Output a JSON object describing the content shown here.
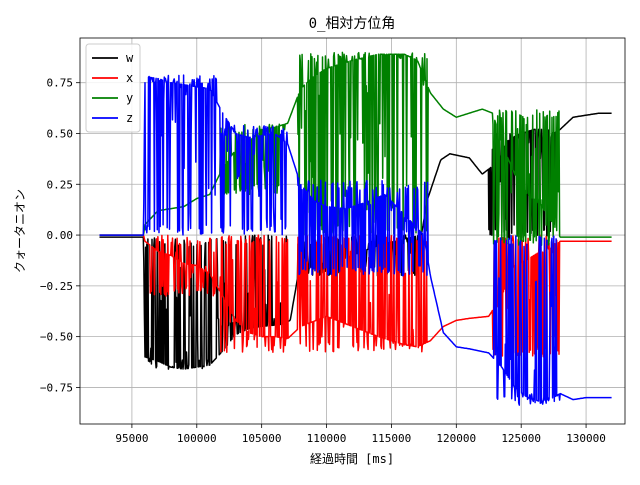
{
  "chart_data": {
    "type": "line",
    "title": "0_相対方位角",
    "xlabel": "経過時間 [ms]",
    "ylabel": "クォータニオン",
    "xlim": [
      91000,
      133000
    ],
    "ylim": [
      -0.93,
      0.97
    ],
    "xticks": [
      95000,
      100000,
      105000,
      110000,
      115000,
      120000,
      125000,
      130000
    ],
    "xtick_labels": [
      "95000",
      "100000",
      "105000",
      "110000",
      "115000",
      "120000",
      "125000",
      "130000"
    ],
    "yticks": [
      -0.75,
      -0.5,
      -0.25,
      0.0,
      0.25,
      0.5,
      0.75
    ],
    "ytick_labels": [
      "−0.75",
      "−0.50",
      "−0.25",
      "0.00",
      "0.25",
      "0.50",
      "0.75"
    ],
    "grid": true,
    "legend_position": "top-left",
    "series": [
      {
        "name": "w",
        "color": "#000000",
        "points": [
          [
            92500,
            -0.01
          ],
          [
            95900,
            -0.01
          ],
          [
            96000,
            -0.6
          ],
          [
            97000,
            -0.62
          ],
          [
            98000,
            -0.65
          ],
          [
            99000,
            -0.66
          ],
          [
            100000,
            -0.65
          ],
          [
            101000,
            -0.64
          ],
          [
            102000,
            -0.57
          ],
          [
            103000,
            -0.49
          ],
          [
            104000,
            -0.46
          ],
          [
            105000,
            -0.45
          ],
          [
            106500,
            -0.44
          ],
          [
            107200,
            -0.42
          ],
          [
            107800,
            -0.2
          ],
          [
            108500,
            -0.16
          ],
          [
            110000,
            -0.15
          ],
          [
            112000,
            -0.1
          ],
          [
            114000,
            -0.05
          ],
          [
            116000,
            -0.02
          ],
          [
            117300,
            0.0
          ],
          [
            117800,
            0.18
          ],
          [
            118800,
            0.37
          ],
          [
            119500,
            0.4
          ],
          [
            121000,
            0.38
          ],
          [
            122000,
            0.3
          ],
          [
            123000,
            0.35
          ],
          [
            124000,
            0.47
          ],
          [
            125000,
            0.5
          ],
          [
            126000,
            0.52
          ],
          [
            127000,
            0.52
          ],
          [
            127500,
            0.5
          ],
          [
            128000,
            0.52
          ],
          [
            129000,
            0.58
          ],
          [
            130000,
            0.59
          ],
          [
            131000,
            0.6
          ],
          [
            132000,
            0.6
          ]
        ],
        "noise": [
          [
            96000,
            101500,
            -0.66,
            -0.01
          ],
          [
            101500,
            107000,
            -0.46,
            0.0
          ],
          [
            107800,
            117000,
            -0.2,
            0.0
          ],
          [
            122500,
            127800,
            -0.02,
            0.5
          ]
        ]
      },
      {
        "name": "x",
        "color": "#ff0000",
        "points": [
          [
            92500,
            0.0
          ],
          [
            95900,
            0.0
          ],
          [
            96000,
            -0.03
          ],
          [
            97000,
            -0.08
          ],
          [
            98000,
            -0.1
          ],
          [
            99000,
            -0.14
          ],
          [
            100000,
            -0.15
          ],
          [
            101000,
            -0.19
          ],
          [
            102000,
            -0.3
          ],
          [
            103000,
            -0.42
          ],
          [
            104000,
            -0.48
          ],
          [
            105000,
            -0.5
          ],
          [
            106000,
            -0.5
          ],
          [
            107000,
            -0.51
          ],
          [
            108000,
            -0.45
          ],
          [
            110000,
            -0.4
          ],
          [
            112000,
            -0.45
          ],
          [
            114000,
            -0.5
          ],
          [
            115000,
            -0.52
          ],
          [
            116000,
            -0.54
          ],
          [
            117000,
            -0.55
          ],
          [
            118000,
            -0.52
          ],
          [
            119000,
            -0.45
          ],
          [
            120000,
            -0.42
          ],
          [
            121000,
            -0.41
          ],
          [
            122500,
            -0.4
          ],
          [
            123500,
            -0.3
          ],
          [
            124500,
            -0.15
          ],
          [
            125500,
            -0.12
          ],
          [
            126500,
            -0.08
          ],
          [
            127500,
            -0.06
          ],
          [
            128000,
            -0.03
          ],
          [
            132000,
            -0.03
          ]
        ],
        "noise": [
          [
            96200,
            101500,
            -0.3,
            0.0
          ],
          [
            101800,
            107000,
            -0.58,
            0.0
          ],
          [
            107800,
            117700,
            -0.58,
            0.0
          ],
          [
            122800,
            128000,
            -0.6,
            0.0
          ]
        ]
      },
      {
        "name": "y",
        "color": "#008000",
        "points": [
          [
            92500,
            0.0
          ],
          [
            95900,
            0.0
          ],
          [
            96000,
            0.05
          ],
          [
            97000,
            0.12
          ],
          [
            98000,
            0.13
          ],
          [
            99000,
            0.14
          ],
          [
            100000,
            0.18
          ],
          [
            101000,
            0.2
          ],
          [
            102000,
            0.33
          ],
          [
            103000,
            0.42
          ],
          [
            104000,
            0.46
          ],
          [
            105000,
            0.52
          ],
          [
            106000,
            0.53
          ],
          [
            107000,
            0.55
          ],
          [
            108000,
            0.72
          ],
          [
            109000,
            0.78
          ],
          [
            110000,
            0.82
          ],
          [
            112000,
            0.86
          ],
          [
            114000,
            0.89
          ],
          [
            116000,
            0.89
          ],
          [
            117000,
            0.86
          ],
          [
            118000,
            0.7
          ],
          [
            119000,
            0.62
          ],
          [
            120000,
            0.58
          ],
          [
            121000,
            0.6
          ],
          [
            122000,
            0.62
          ],
          [
            122800,
            0.6
          ],
          [
            123500,
            0.45
          ],
          [
            124500,
            0.3
          ],
          [
            125500,
            0.2
          ],
          [
            126500,
            0.15
          ],
          [
            127500,
            0.05
          ],
          [
            128000,
            -0.01
          ],
          [
            132000,
            -0.01
          ]
        ],
        "noise": [
          [
            101800,
            106800,
            0.2,
            0.55
          ],
          [
            107800,
            117800,
            0.0,
            0.9
          ],
          [
            122800,
            128000,
            -0.05,
            0.62
          ]
        ]
      },
      {
        "name": "z",
        "color": "#0000ff",
        "points": [
          [
            92500,
            0.0
          ],
          [
            95900,
            0.0
          ],
          [
            96000,
            0.78
          ],
          [
            97000,
            0.77
          ],
          [
            98000,
            0.75
          ],
          [
            99000,
            0.74
          ],
          [
            100000,
            0.73
          ],
          [
            101000,
            0.72
          ],
          [
            102000,
            0.6
          ],
          [
            103000,
            0.5
          ],
          [
            104000,
            0.48
          ],
          [
            105000,
            0.49
          ],
          [
            106000,
            0.5
          ],
          [
            107000,
            0.45
          ],
          [
            108000,
            0.25
          ],
          [
            109000,
            0.17
          ],
          [
            110000,
            0.14
          ],
          [
            111500,
            0.13
          ],
          [
            113000,
            0.16
          ],
          [
            114500,
            0.2
          ],
          [
            116000,
            0.1
          ],
          [
            117500,
            0.0
          ],
          [
            118000,
            -0.2
          ],
          [
            119000,
            -0.48
          ],
          [
            120000,
            -0.55
          ],
          [
            121000,
            -0.56
          ],
          [
            122500,
            -0.58
          ],
          [
            123500,
            -0.65
          ],
          [
            124500,
            -0.75
          ],
          [
            125500,
            -0.8
          ],
          [
            126500,
            -0.82
          ],
          [
            127500,
            -0.8
          ],
          [
            128000,
            -0.78
          ],
          [
            129000,
            -0.81
          ],
          [
            130000,
            -0.8
          ],
          [
            132000,
            -0.8
          ]
        ],
        "noise": [
          [
            96000,
            101500,
            0.0,
            0.79
          ],
          [
            101800,
            107000,
            0.0,
            0.54
          ],
          [
            107800,
            117800,
            -0.2,
            0.27
          ],
          [
            122800,
            128000,
            -0.84,
            0.0
          ]
        ]
      }
    ]
  }
}
